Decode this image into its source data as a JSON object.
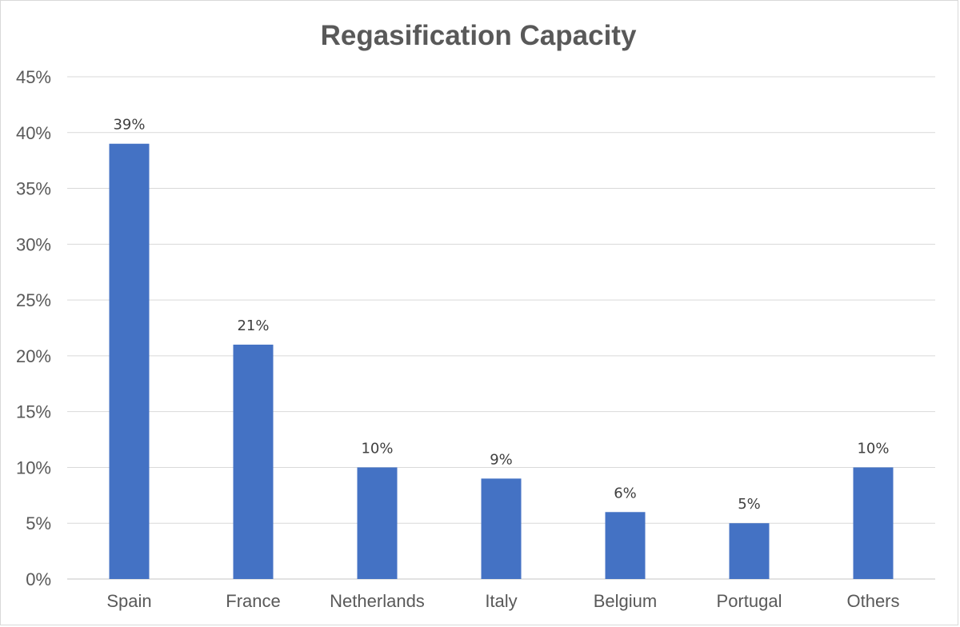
{
  "chart_data": {
    "type": "bar",
    "title": "Regasification Capacity",
    "xlabel": "",
    "ylabel": "",
    "categories": [
      "Spain",
      "France",
      "Netherlands",
      "Italy",
      "Belgium",
      "Portugal",
      "Others"
    ],
    "values": [
      39,
      21,
      10,
      9,
      6,
      5,
      10
    ],
    "data_labels": [
      "39%",
      "21%",
      "10%",
      "9%",
      "6%",
      "5%",
      "10%"
    ],
    "ylim": [
      0,
      45
    ],
    "y_ticks": [
      "0%",
      "5%",
      "10%",
      "15%",
      "20%",
      "25%",
      "30%",
      "35%",
      "40%",
      "45%"
    ],
    "y_tick_values": [
      0,
      5,
      10,
      15,
      20,
      25,
      30,
      35,
      40,
      45
    ],
    "grid": true,
    "legend": "none",
    "bar_color": "#4472C4"
  }
}
